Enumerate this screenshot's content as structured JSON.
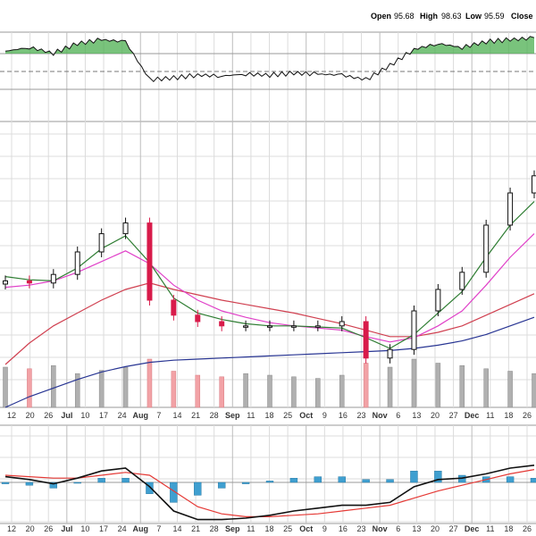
{
  "header": {
    "open_label": "Open",
    "open_value": "95.68",
    "high_label": "High",
    "high_value": "98.63",
    "low_label": "Low",
    "low_value": "95.59",
    "close_label": "Close"
  },
  "colors": {
    "up": "#111111",
    "down": "#d81b4a",
    "vol_up": "#b0b0b0",
    "vol_down": "#f2a2a6",
    "ema_short": "#2e7d32",
    "ema_mid": "#e040c8",
    "sma_long": "#d04050",
    "sma_200": "#283593",
    "macd": "#111111",
    "signal": "#e53935",
    "histogram": "#3f9fd0",
    "grid": "#dcdcdc"
  },
  "chart_data": [
    {
      "type": "line",
      "panel": "indicator",
      "x": [
        "Jun 12",
        "Jun 20",
        "Jun 26",
        "Jul 10",
        "Jul 17",
        "Jul 24",
        "Aug 7",
        "Aug 14",
        "Aug 21",
        "Aug 28",
        "Sep 11",
        "Sep 18",
        "Sep 25",
        "Oct 9",
        "Oct 16",
        "Oct 23",
        "Nov 6",
        "Nov 13",
        "Nov 20",
        "Nov 27",
        "Dec 11",
        "Dec 18",
        "Dec 26"
      ],
      "series": [
        {
          "values": [
            70,
            74,
            68,
            78,
            82,
            80,
            40,
            42,
            45,
            44,
            46,
            45,
            47,
            46,
            45,
            40,
            55,
            72,
            78,
            74,
            80,
            82,
            84
          ]
        }
      ]
    },
    {
      "type": "candlestick",
      "panel": "price",
      "x": [
        "Jun 12",
        "Jun 20",
        "Jun 26",
        "Jul 10",
        "Jul 17",
        "Jul 24",
        "Aug 7",
        "Aug 14",
        "Aug 21",
        "Aug 28",
        "Sep 11",
        "Sep 18",
        "Sep 25",
        "Oct 9",
        "Oct 16",
        "Oct 23",
        "Nov 6",
        "Nov 13",
        "Nov 20",
        "Nov 27",
        "Dec 11",
        "Dec 18",
        "Dec 26"
      ],
      "close": [
        85.8,
        85.6,
        86.4,
        88.5,
        90.2,
        91.2,
        84.0,
        82.6,
        82.0,
        81.6,
        81.6,
        81.6,
        81.6,
        81.6,
        82.0,
        78.6,
        79.4,
        83.0,
        85.0,
        86.6,
        91.0,
        94.0,
        95.6
      ],
      "volume": [
        50,
        48,
        52,
        42,
        46,
        50,
        60,
        45,
        40,
        38,
        42,
        40,
        38,
        36,
        40,
        55,
        50,
        60,
        55,
        52,
        48,
        45,
        42
      ],
      "ema_short": [
        86.2,
        85.9,
        85.8,
        87.0,
        88.8,
        90.0,
        87.5,
        84.2,
        82.8,
        82.2,
        81.8,
        81.6,
        81.6,
        81.5,
        81.4,
        80.5,
        79.5,
        80.8,
        82.8,
        84.8,
        88.0,
        91.0,
        93.2
      ],
      "ema_mid": [
        85.2,
        85.4,
        85.8,
        86.6,
        87.6,
        88.6,
        87.4,
        85.4,
        84.0,
        83.0,
        82.4,
        81.9,
        81.6,
        81.4,
        81.2,
        80.6,
        80.1,
        80.5,
        81.6,
        83.0,
        85.4,
        88.0,
        90.2
      ],
      "sma_long": [
        78.0,
        80.0,
        81.6,
        82.8,
        84.0,
        85.0,
        85.6,
        85.0,
        84.5,
        84.0,
        83.6,
        83.2,
        82.8,
        82.3,
        81.8,
        81.2,
        80.6,
        80.6,
        81.0,
        81.6,
        82.6,
        83.6,
        84.6
      ],
      "sma_200": [
        74.0,
        75.0,
        75.8,
        76.6,
        77.3,
        77.8,
        78.2,
        78.4,
        78.5,
        78.6,
        78.7,
        78.8,
        78.9,
        79.0,
        79.1,
        79.2,
        79.3,
        79.5,
        79.8,
        80.2,
        80.8,
        81.6,
        82.4
      ]
    },
    {
      "type": "line",
      "panel": "macd",
      "x": [
        "Jun 12",
        "Jun 20",
        "Jun 26",
        "Jul 10",
        "Jul 17",
        "Jul 24",
        "Aug 7",
        "Aug 14",
        "Aug 21",
        "Aug 28",
        "Sep 11",
        "Sep 18",
        "Sep 25",
        "Oct 9",
        "Oct 16",
        "Oct 23",
        "Nov 6",
        "Nov 13",
        "Nov 20",
        "Nov 27",
        "Dec 11",
        "Dec 18",
        "Dec 26"
      ],
      "macd": [
        0.4,
        0.2,
        -0.1,
        0.3,
        0.8,
        1.0,
        -0.3,
        -2.0,
        -2.6,
        -2.6,
        -2.5,
        -2.3,
        -2.0,
        -1.8,
        -1.6,
        -1.6,
        -1.4,
        -0.3,
        0.2,
        0.3,
        0.6,
        1.0,
        1.2
      ],
      "signal": [
        0.5,
        0.4,
        0.3,
        0.3,
        0.5,
        0.7,
        0.5,
        -0.6,
        -1.7,
        -2.2,
        -2.4,
        -2.4,
        -2.3,
        -2.2,
        -2.0,
        -1.8,
        -1.6,
        -1.1,
        -0.6,
        -0.2,
        0.2,
        0.6,
        0.9
      ],
      "histogram": [
        -0.1,
        -0.2,
        -0.4,
        0.0,
        0.3,
        0.3,
        -0.8,
        -1.4,
        -0.9,
        -0.4,
        -0.1,
        0.1,
        0.3,
        0.4,
        0.4,
        0.2,
        0.2,
        0.8,
        0.8,
        0.5,
        0.4,
        0.4,
        0.3
      ]
    }
  ],
  "axis": {
    "x_ticks": [
      {
        "label": "12",
        "bold": false
      },
      {
        "label": "20",
        "bold": false
      },
      {
        "label": "26",
        "bold": false
      },
      {
        "label": "Jul",
        "bold": true
      },
      {
        "label": "10",
        "bold": false
      },
      {
        "label": "17",
        "bold": false
      },
      {
        "label": "24",
        "bold": false
      },
      {
        "label": "Aug",
        "bold": true
      },
      {
        "label": "7",
        "bold": false
      },
      {
        "label": "14",
        "bold": false
      },
      {
        "label": "21",
        "bold": false
      },
      {
        "label": "28",
        "bold": false
      },
      {
        "label": "Sep",
        "bold": true
      },
      {
        "label": "11",
        "bold": false
      },
      {
        "label": "18",
        "bold": false
      },
      {
        "label": "25",
        "bold": false
      },
      {
        "label": "Oct",
        "bold": true
      },
      {
        "label": "9",
        "bold": false
      },
      {
        "label": "16",
        "bold": false
      },
      {
        "label": "23",
        "bold": false
      },
      {
        "label": "Nov",
        "bold": true
      },
      {
        "label": "6",
        "bold": false
      },
      {
        "label": "13",
        "bold": false
      },
      {
        "label": "20",
        "bold": false
      },
      {
        "label": "27",
        "bold": false
      },
      {
        "label": "Dec",
        "bold": true
      },
      {
        "label": "11",
        "bold": false
      },
      {
        "label": "18",
        "bold": false
      },
      {
        "label": "26",
        "bold": false
      }
    ]
  }
}
